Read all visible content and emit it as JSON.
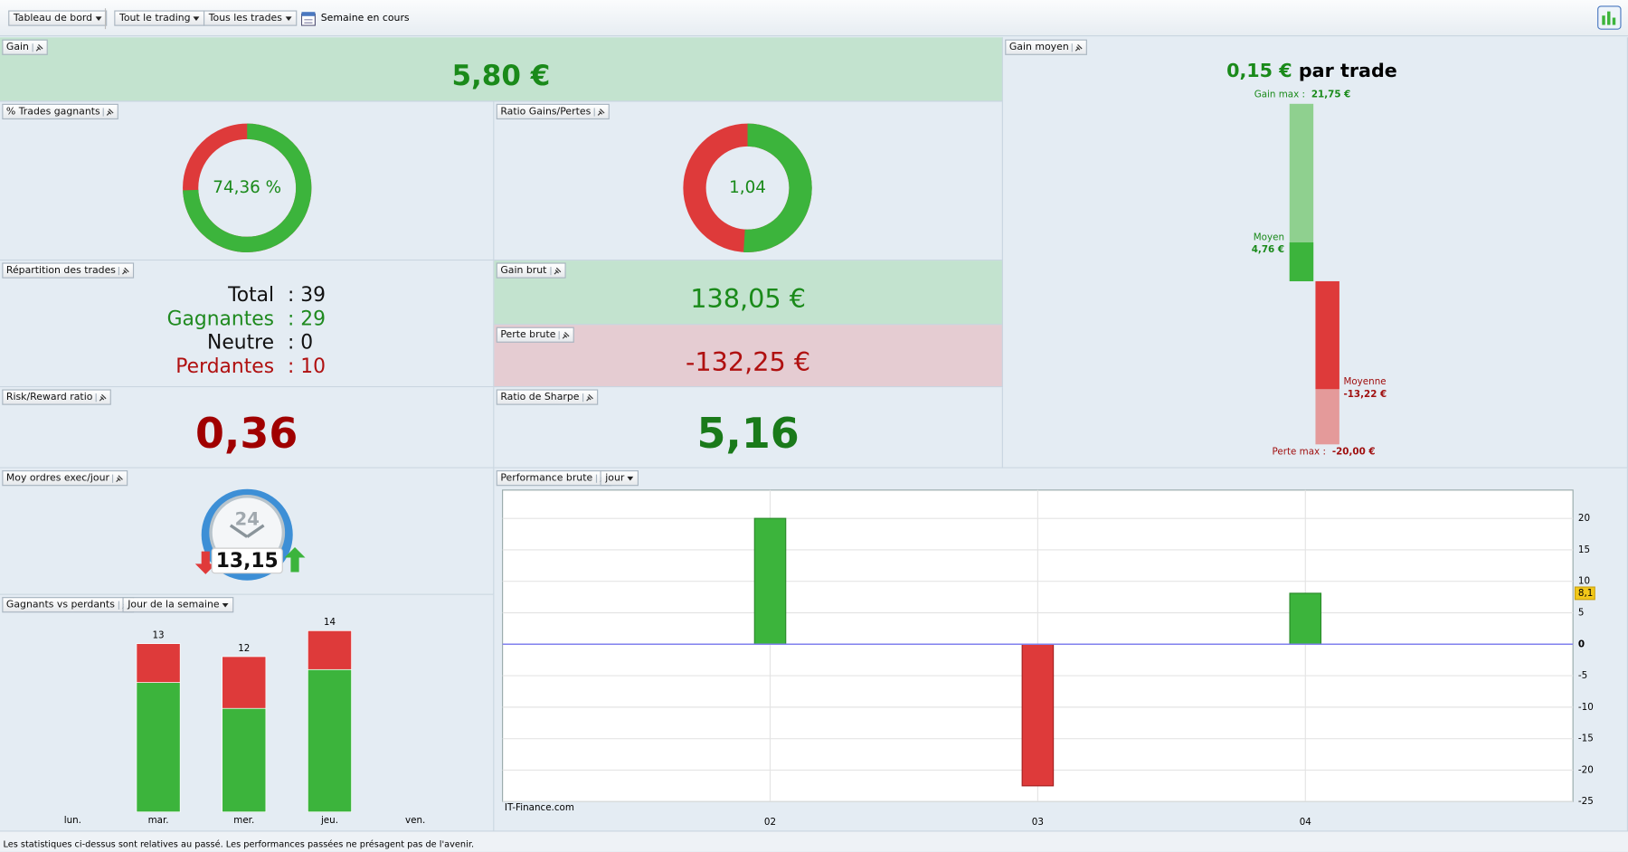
{
  "toolbar": {
    "dashboard": "Tableau de bord",
    "scope": "Tout le trading",
    "trades": "Tous les trades",
    "period": "Semaine en cours"
  },
  "gain": {
    "label": "Gain",
    "value": "5,80 €"
  },
  "win_rate": {
    "label": "% Trades gagnants",
    "chart": {
      "type": "donut",
      "value": 74.36,
      "value_label": "74,36 %",
      "colors": [
        "#3cb43c",
        "#de3a3a"
      ]
    }
  },
  "ratio": {
    "label": "Ratio Gains/Pertes",
    "chart": {
      "type": "donut_ratio",
      "value": 1.04,
      "value_label": "1,04",
      "colors": [
        "#3cb43c",
        "#de3a3a"
      ]
    }
  },
  "distribution": {
    "label": "Répartition des trades",
    "rows": [
      {
        "label": "Total",
        "value": ": 39",
        "color": "#111111"
      },
      {
        "label": "Gagnantes",
        "value": ": 29",
        "color": "#1f8a1f"
      },
      {
        "label": "Neutre",
        "value": ": 0",
        "color": "#111111"
      },
      {
        "label": "Perdantes",
        "value": ": 10",
        "color": "#b01010"
      }
    ]
  },
  "gross_gain": {
    "label": "Gain brut",
    "value": "138,05 €"
  },
  "gross_loss": {
    "label": "Perte brute",
    "value": "-132,25 €"
  },
  "risk_reward": {
    "label": "Risk/Reward ratio",
    "value": "0,36"
  },
  "sharpe": {
    "label": "Ratio de Sharpe",
    "value": "5,16"
  },
  "orders": {
    "label": "Moy ordres exec/jour",
    "value": "13,15",
    "clock": "24"
  },
  "avg_gain": {
    "label": "Gain moyen",
    "value": "0,15 €",
    "suffix": "par trade",
    "chart": {
      "type": "range_bar",
      "gain_max": {
        "label": "Gain max  :",
        "value": 21.75,
        "value_label": "21,75 €"
      },
      "gain_avg": {
        "label": "Moyen",
        "value": 4.76,
        "value_label": "4,76 €"
      },
      "loss_avg": {
        "label": "Moyenne",
        "value": -13.22,
        "value_label": "-13,22 €"
      },
      "loss_max": {
        "label": "Perte max :",
        "value": -20,
        "value_label": "-20,00 €"
      },
      "colors": {
        "gain_light": "#8fd08f",
        "gain": "#3cb43c",
        "loss": "#de3a3a",
        "loss_light": "#e49a9a"
      }
    }
  },
  "weekday": {
    "label": "Gagnants vs perdants",
    "dropdown": "Jour de la semaine",
    "chart": {
      "type": "stacked_bar",
      "categories": [
        "lun.",
        "mar.",
        "mer.",
        "jeu.",
        "ven."
      ],
      "series": [
        {
          "color": "#3cb43c",
          "values": [
            0,
            10,
            8,
            11,
            0
          ]
        },
        {
          "color": "#de3a3a",
          "values": [
            0,
            3,
            4,
            3,
            0
          ]
        }
      ],
      "totals": [
        null,
        "13",
        "12",
        "14",
        null
      ],
      "ylim": [
        0,
        15
      ]
    }
  },
  "performance": {
    "label": "Performance brute",
    "dropdown": "jour",
    "chart": {
      "type": "bar",
      "x": [
        2,
        3,
        4
      ],
      "values": [
        20,
        -22.5,
        8.1
      ],
      "xlim": [
        1,
        5
      ],
      "xticks": [
        {
          "value": 2,
          "label": "02"
        },
        {
          "value": 3,
          "label": "03"
        },
        {
          "value": 4,
          "label": "04"
        }
      ],
      "ylim": [
        -25,
        24.5
      ],
      "yticks": [
        20,
        15,
        10,
        5,
        0,
        -5,
        -10,
        -15,
        -20,
        -25
      ],
      "grid": true,
      "marker": {
        "value": 8.1,
        "label": "8,1"
      },
      "watermark": "IT-Finance.com",
      "colors": {
        "positive": "#3cb43c",
        "negative": "#de3a3a",
        "zero_line": "#8080ee"
      }
    }
  },
  "footer": "Les statistiques ci-dessus sont relatives au passé. Les performances passées ne présagent pas de l'avenir."
}
